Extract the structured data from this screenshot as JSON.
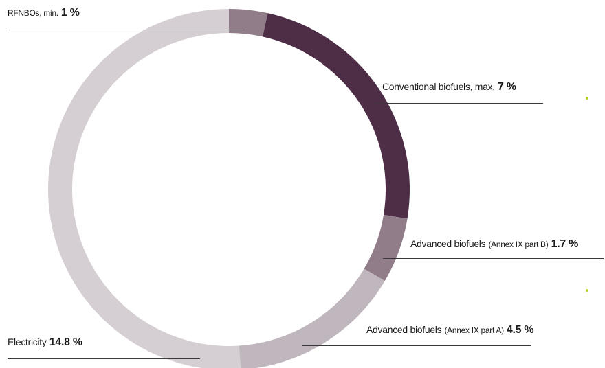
{
  "chart_data": {
    "type": "pie",
    "variant": "donut",
    "segments": [
      {
        "key": "rfnbo",
        "name": "RFNBOs, min.",
        "value": 1,
        "display": "1 %",
        "color": "#917d89"
      },
      {
        "key": "conventional",
        "name": "Conventional biofuels, max.",
        "value": 7,
        "display": "7 %",
        "color": "#4d2e46"
      },
      {
        "key": "advanced_b",
        "name": "Advanced biofuels",
        "name_suffix": "(Annex IX part B)",
        "value": 1.7,
        "display": "1.7 %",
        "color": "#917d89"
      },
      {
        "key": "advanced_a",
        "name": "Advanced biofuels",
        "name_suffix": "(Annex IX part A)",
        "value": 4.5,
        "display": "4.5 %",
        "color": "#c0b6bd"
      },
      {
        "key": "electricity",
        "name": "Electricity",
        "value": 14.8,
        "display": "14.8 %",
        "color": "#d5ced3"
      }
    ],
    "grid": false,
    "legend": "none",
    "bullet_color": "#b7d21e"
  }
}
